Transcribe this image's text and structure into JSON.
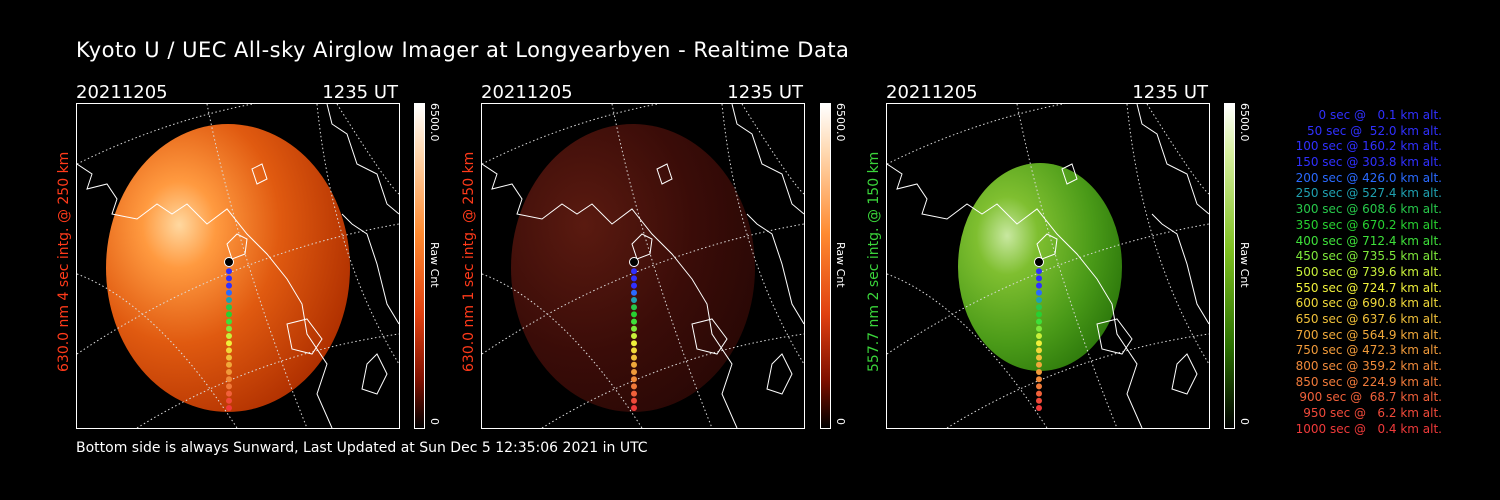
{
  "title": "Kyoto U / UEC All-sky Airglow Imager at Longyearbyen - Realtime Data",
  "footer": "Bottom side is always Sunward, Last Updated at Sun Dec  5 12:35:06 2021 in UTC",
  "panels": [
    {
      "date": "20211205",
      "time": "1235 UT",
      "ylabel": "630.0 nm 4 sec intg. @ 250 km",
      "ylabel_color": "#ff3a1a",
      "cbar_max": "6500.0",
      "cbar_unit": "Raw Cnt",
      "cbar_min": "0",
      "brightness": 0.75,
      "color": "red"
    },
    {
      "date": "20211205",
      "time": "1235 UT",
      "ylabel": "630.0 nm 1 sec intg. @ 250 km",
      "ylabel_color": "#ff3a1a",
      "cbar_max": "6500.0",
      "cbar_unit": "Raw Cnt",
      "cbar_min": "0",
      "brightness": 0.2,
      "color": "red"
    },
    {
      "date": "20211205",
      "time": "1235 UT",
      "ylabel": "557.7 nm 2 sec intg. @ 150 km",
      "ylabel_color": "#3ad43a",
      "cbar_max": "6500.0",
      "cbar_unit": "Raw Cnt",
      "cbar_min": "0",
      "brightness": 0.6,
      "color": "green"
    }
  ],
  "legend": [
    {
      "text": "0 sec @   0.1 km alt.",
      "color": "#3030ff"
    },
    {
      "text": "50 sec @  52.0 km alt.",
      "color": "#3030ff"
    },
    {
      "text": "100 sec @ 160.2 km alt.",
      "color": "#3030ff"
    },
    {
      "text": "150 sec @ 303.8 km alt.",
      "color": "#3030ff"
    },
    {
      "text": "200 sec @ 426.0 km alt.",
      "color": "#2a6aff"
    },
    {
      "text": "250 sec @ 527.4 km alt.",
      "color": "#1fa0b0"
    },
    {
      "text": "300 sec @ 608.6 km alt.",
      "color": "#27c84a"
    },
    {
      "text": "350 sec @ 670.2 km alt.",
      "color": "#27d030"
    },
    {
      "text": "400 sec @ 712.4 km alt.",
      "color": "#3ee03a"
    },
    {
      "text": "450 sec @ 735.5 km alt.",
      "color": "#7ee83a"
    },
    {
      "text": "500 sec @ 739.6 km alt.",
      "color": "#c8f03a"
    },
    {
      "text": "550 sec @ 724.7 km alt.",
      "color": "#f0f03a"
    },
    {
      "text": "600 sec @ 690.8 km alt.",
      "color": "#f0d83a"
    },
    {
      "text": "650 sec @ 637.6 km alt.",
      "color": "#f0c03a"
    },
    {
      "text": "700 sec @ 564.9 km alt.",
      "color": "#f0a83a"
    },
    {
      "text": "750 sec @ 472.3 km alt.",
      "color": "#f09a3a"
    },
    {
      "text": "800 sec @ 359.2 km alt.",
      "color": "#f08a3a"
    },
    {
      "text": "850 sec @ 224.9 km alt.",
      "color": "#f07a3a"
    },
    {
      "text": "900 sec @  68.7 km alt.",
      "color": "#f0603a"
    },
    {
      "text": "950 sec @   6.2 km alt.",
      "color": "#f04a3a"
    },
    {
      "text": "1000 sec @   0.4 km alt.",
      "color": "#f03a3a"
    }
  ]
}
